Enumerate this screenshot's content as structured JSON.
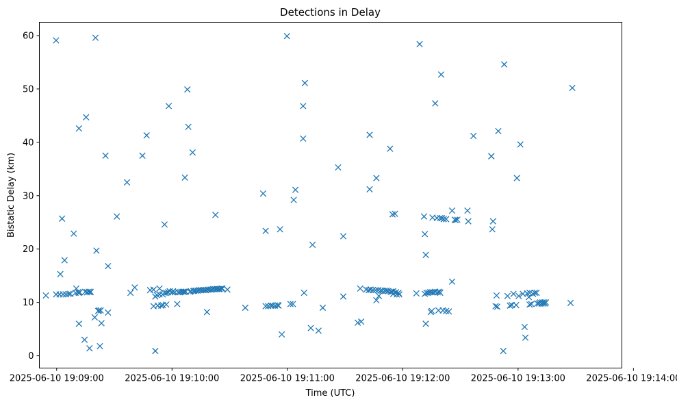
{
  "chart_data": {
    "type": "scatter",
    "title": "Detections in Delay",
    "xlabel": "Time (UTC)",
    "ylabel": "Bistatic Delay (km)",
    "marker": "x",
    "color": "#1f77b4",
    "x_unit": "seconds since 2025-06-10 19:08:00",
    "xlim": [
      51,
      354
    ],
    "ylim": [
      -2.3,
      62.5
    ],
    "xticks": [
      {
        "value": 60,
        "label": "2025-06-10 19:09:00"
      },
      {
        "value": 120,
        "label": "2025-06-10 19:10:00"
      },
      {
        "value": 180,
        "label": "2025-06-10 19:11:00"
      },
      {
        "value": 240,
        "label": "2025-06-10 19:12:00"
      },
      {
        "value": 300,
        "label": "2025-06-10 19:13:00"
      },
      {
        "value": 360,
        "label": "2025-06-10 19:14:00"
      }
    ],
    "yticks": [
      {
        "value": 0,
        "label": "0"
      },
      {
        "value": 10,
        "label": "10"
      },
      {
        "value": 20,
        "label": "20"
      },
      {
        "value": 30,
        "label": "30"
      },
      {
        "value": 40,
        "label": "40"
      },
      {
        "value": 50,
        "label": "50"
      },
      {
        "value": 60,
        "label": "60"
      }
    ],
    "points": [
      [
        54.4,
        11.3
      ],
      [
        59.7,
        59.1
      ],
      [
        59.7,
        11.5
      ],
      [
        61.5,
        11.5
      ],
      [
        61.9,
        15.3
      ],
      [
        62.8,
        25.7
      ],
      [
        63.3,
        11.5
      ],
      [
        64.1,
        17.9
      ],
      [
        64.8,
        11.5
      ],
      [
        66.2,
        11.6
      ],
      [
        67.1,
        11.6
      ],
      [
        68.9,
        22.9
      ],
      [
        69.8,
        11.8
      ],
      [
        70.2,
        12.6
      ],
      [
        71.1,
        11.9
      ],
      [
        71.6,
        11.8
      ],
      [
        71.6,
        6.0
      ],
      [
        71.6,
        42.6
      ],
      [
        72.0,
        11.9
      ],
      [
        74.5,
        3.0
      ],
      [
        74.9,
        12.0
      ],
      [
        75.3,
        44.7
      ],
      [
        75.8,
        11.9
      ],
      [
        76.7,
        12.0
      ],
      [
        77.1,
        1.4
      ],
      [
        77.6,
        11.9
      ],
      [
        77.6,
        12.0
      ],
      [
        79.8,
        7.2
      ],
      [
        80.2,
        59.6
      ],
      [
        80.7,
        19.7
      ],
      [
        81.6,
        8.4
      ],
      [
        82.0,
        8.5
      ],
      [
        82.5,
        1.8
      ],
      [
        82.9,
        8.5
      ],
      [
        83.3,
        6.1
      ],
      [
        85.4,
        37.5
      ],
      [
        86.7,
        8.1
      ],
      [
        86.7,
        16.8
      ],
      [
        91.3,
        26.1
      ],
      [
        96.6,
        32.5
      ],
      [
        98.4,
        11.8
      ],
      [
        100.6,
        12.8
      ],
      [
        104.6,
        37.5
      ],
      [
        106.8,
        41.3
      ],
      [
        108.6,
        12.3
      ],
      [
        110.4,
        9.3
      ],
      [
        110.4,
        12.4
      ],
      [
        111.3,
        0.9
      ],
      [
        111.3,
        11.1
      ],
      [
        112.1,
        11.4
      ],
      [
        112.6,
        9.4
      ],
      [
        113.5,
        11.5
      ],
      [
        113.5,
        12.6
      ],
      [
        114.4,
        9.4
      ],
      [
        115.2,
        11.5
      ],
      [
        115.2,
        9.5
      ],
      [
        116.1,
        24.6
      ],
      [
        116.1,
        11.8
      ],
      [
        117.0,
        11.8
      ],
      [
        117.0,
        9.6
      ],
      [
        117.9,
        11.9
      ],
      [
        118.3,
        46.8
      ],
      [
        118.8,
        12.1
      ],
      [
        120.1,
        11.9
      ],
      [
        120.5,
        12.1
      ],
      [
        121.4,
        11.9
      ],
      [
        122.7,
        9.7
      ],
      [
        123.2,
        11.9
      ],
      [
        124.1,
        11.9
      ],
      [
        124.9,
        12.0
      ],
      [
        125.8,
        12.0
      ],
      [
        126.3,
        12.0
      ],
      [
        126.7,
        33.4
      ],
      [
        127.1,
        12.0
      ],
      [
        128.0,
        49.9
      ],
      [
        128.5,
        42.9
      ],
      [
        129.4,
        12.0
      ],
      [
        129.8,
        12.1
      ],
      [
        130.7,
        38.1
      ],
      [
        131.1,
        12.1
      ],
      [
        131.6,
        12.2
      ],
      [
        132.4,
        12.2
      ],
      [
        133.3,
        12.2
      ],
      [
        134.2,
        12.3
      ],
      [
        135.1,
        12.3
      ],
      [
        136.0,
        12.3
      ],
      [
        136.9,
        12.3
      ],
      [
        137.7,
        12.3
      ],
      [
        138.2,
        8.2
      ],
      [
        138.6,
        12.4
      ],
      [
        139.5,
        12.4
      ],
      [
        140.4,
        12.4
      ],
      [
        141.3,
        12.5
      ],
      [
        142.2,
        12.5
      ],
      [
        142.6,
        26.4
      ],
      [
        143.1,
        12.5
      ],
      [
        143.5,
        12.5
      ],
      [
        144.4,
        12.5
      ],
      [
        144.8,
        12.5
      ],
      [
        145.7,
        12.6
      ],
      [
        146.2,
        12.6
      ],
      [
        148.8,
        12.4
      ],
      [
        158.1,
        9.0
      ],
      [
        167.4,
        30.4
      ],
      [
        168.7,
        23.4
      ],
      [
        168.7,
        9.3
      ],
      [
        170.0,
        9.3
      ],
      [
        171.4,
        9.4
      ],
      [
        172.3,
        9.4
      ],
      [
        173.6,
        9.4
      ],
      [
        174.9,
        9.5
      ],
      [
        175.4,
        9.4
      ],
      [
        176.2,
        23.7
      ],
      [
        177.1,
        4.0
      ],
      [
        179.8,
        59.9
      ],
      [
        181.6,
        9.7
      ],
      [
        182.9,
        9.7
      ],
      [
        183.3,
        29.2
      ],
      [
        184.2,
        31.1
      ],
      [
        188.2,
        46.8
      ],
      [
        188.2,
        40.7
      ],
      [
        188.7,
        11.8
      ],
      [
        189.1,
        51.1
      ],
      [
        192.2,
        5.2
      ],
      [
        193.1,
        20.8
      ],
      [
        196.2,
        4.7
      ],
      [
        198.4,
        9.0
      ],
      [
        206.4,
        35.3
      ],
      [
        209.1,
        11.1
      ],
      [
        209.1,
        22.4
      ],
      [
        216.6,
        6.2
      ],
      [
        217.9,
        12.6
      ],
      [
        218.4,
        6.4
      ],
      [
        221.0,
        12.4
      ],
      [
        222.3,
        12.3
      ],
      [
        222.8,
        41.4
      ],
      [
        222.8,
        31.2
      ],
      [
        223.2,
        12.4
      ],
      [
        224.5,
        12.3
      ],
      [
        225.9,
        12.3
      ],
      [
        226.3,
        10.4
      ],
      [
        226.3,
        33.3
      ],
      [
        227.2,
        12.3
      ],
      [
        227.6,
        11.2
      ],
      [
        228.5,
        12.2
      ],
      [
        229.4,
        12.2
      ],
      [
        230.7,
        12.2
      ],
      [
        231.6,
        12.2
      ],
      [
        232.5,
        12.1
      ],
      [
        233.4,
        38.8
      ],
      [
        233.8,
        12.0
      ],
      [
        234.2,
        12.0
      ],
      [
        234.7,
        26.5
      ],
      [
        235.1,
        11.6
      ],
      [
        235.1,
        12.1
      ],
      [
        236.0,
        26.6
      ],
      [
        236.5,
        11.9
      ],
      [
        236.9,
        11.5
      ],
      [
        237.8,
        11.8
      ],
      [
        238.2,
        11.5
      ],
      [
        247.1,
        11.7
      ],
      [
        248.8,
        58.4
      ],
      [
        251.1,
        26.1
      ],
      [
        251.5,
        11.6
      ],
      [
        251.5,
        22.8
      ],
      [
        252.0,
        18.9
      ],
      [
        252.0,
        6.0
      ],
      [
        252.4,
        11.8
      ],
      [
        253.3,
        11.8
      ],
      [
        254.2,
        11.9
      ],
      [
        254.6,
        8.2
      ],
      [
        255.1,
        8.4
      ],
      [
        255.1,
        11.9
      ],
      [
        255.5,
        25.9
      ],
      [
        256.0,
        11.9
      ],
      [
        256.9,
        12.0
      ],
      [
        256.9,
        47.3
      ],
      [
        257.8,
        25.8
      ],
      [
        258.2,
        11.9
      ],
      [
        258.6,
        8.5
      ],
      [
        259.1,
        12.0
      ],
      [
        259.5,
        11.8
      ],
      [
        259.5,
        25.8
      ],
      [
        260.0,
        52.7
      ],
      [
        260.4,
        25.8
      ],
      [
        260.9,
        8.5
      ],
      [
        261.3,
        25.6
      ],
      [
        262.6,
        8.4
      ],
      [
        262.6,
        25.6
      ],
      [
        264.0,
        8.3
      ],
      [
        265.7,
        13.9
      ],
      [
        265.7,
        27.2
      ],
      [
        267.1,
        25.5
      ],
      [
        267.5,
        25.4
      ],
      [
        268.4,
        25.5
      ],
      [
        273.7,
        27.2
      ],
      [
        274.1,
        25.2
      ],
      [
        276.8,
        41.2
      ],
      [
        286.1,
        37.4
      ],
      [
        286.1,
        37.4
      ],
      [
        286.6,
        23.7
      ],
      [
        287.0,
        25.2
      ],
      [
        288.3,
        9.3
      ],
      [
        288.8,
        11.3
      ],
      [
        289.2,
        9.2
      ],
      [
        289.7,
        42.1
      ],
      [
        292.3,
        0.9
      ],
      [
        292.8,
        54.6
      ],
      [
        294.5,
        11.2
      ],
      [
        295.8,
        9.4
      ],
      [
        296.7,
        9.5
      ],
      [
        297.6,
        11.6
      ],
      [
        299.0,
        9.5
      ],
      [
        299.4,
        33.3
      ],
      [
        300.3,
        11.2
      ],
      [
        301.2,
        39.6
      ],
      [
        302.5,
        11.6
      ],
      [
        303.4,
        5.4
      ],
      [
        303.8,
        3.4
      ],
      [
        304.7,
        11.7
      ],
      [
        305.6,
        11.0
      ],
      [
        306.0,
        9.6
      ],
      [
        306.0,
        11.8
      ],
      [
        306.9,
        9.7
      ],
      [
        307.8,
        11.6
      ],
      [
        308.7,
        11.8
      ],
      [
        309.6,
        11.8
      ],
      [
        310.0,
        9.8
      ],
      [
        310.9,
        9.8
      ],
      [
        311.4,
        10.0
      ],
      [
        312.2,
        9.8
      ],
      [
        312.7,
        10.0
      ],
      [
        313.1,
        9.8
      ],
      [
        313.6,
        10.0
      ],
      [
        314.0,
        9.8
      ],
      [
        314.5,
        10.0
      ],
      [
        327.3,
        9.9
      ],
      [
        328.2,
        50.2
      ]
    ]
  }
}
